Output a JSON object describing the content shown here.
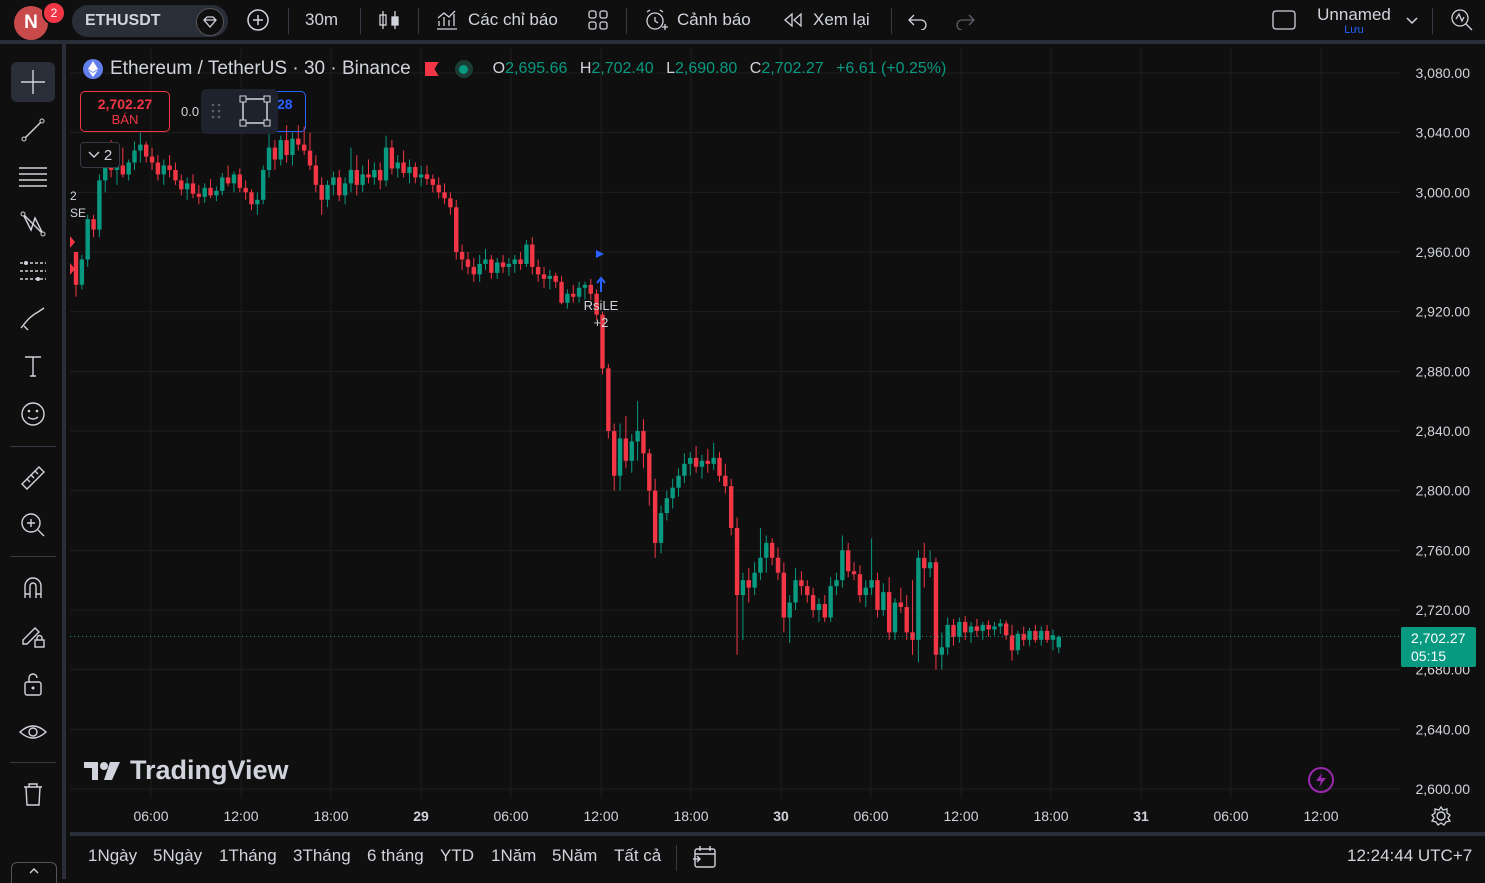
{
  "topbar": {
    "avatar_letter": "N",
    "notification_count": "2",
    "symbol": "ETHUSDT",
    "interval": "30m",
    "indicators_label": "Các chỉ báo",
    "alerts_label": "Cảnh báo",
    "replay_label": "Xem lại",
    "layout_name": "Unnamed",
    "save_label": "Lưu"
  },
  "legend": {
    "title": "Ethereum / TetherUS · 30 · Binance",
    "o_label": "O",
    "o": "2,695.66",
    "h_label": "H",
    "h": "2,702.40",
    "l_label": "L",
    "l": "2,690.80",
    "c_label": "C",
    "c": "2,702.27",
    "change": "+6.61 (+0.25%)"
  },
  "trade": {
    "sell_price": "2,702.27",
    "sell_label": "BÁN",
    "spread": "0.0",
    "buy_price_fragment": "28",
    "collapse_count": "2"
  },
  "signal": {
    "label": "RsiLE",
    "count": "+2"
  },
  "side_labels": [
    "2",
    "SE"
  ],
  "price_axis": {
    "labels": [
      "3,080.00",
      "3,040.00",
      "3,000.00",
      "2,960.00",
      "2,920.00",
      "2,880.00",
      "2,840.00",
      "2,800.00",
      "2,760.00",
      "2,720.00",
      "2,680.00",
      "2,640.00",
      "2,600.00"
    ],
    "last_price": "2,702.27",
    "countdown": "05:15"
  },
  "time_axis": {
    "labels": [
      {
        "t": "06:00",
        "bold": false
      },
      {
        "t": "12:00",
        "bold": false
      },
      {
        "t": "18:00",
        "bold": false
      },
      {
        "t": "29",
        "bold": true
      },
      {
        "t": "06:00",
        "bold": false
      },
      {
        "t": "12:00",
        "bold": false
      },
      {
        "t": "18:00",
        "bold": false
      },
      {
        "t": "30",
        "bold": true
      },
      {
        "t": "06:00",
        "bold": false
      },
      {
        "t": "12:00",
        "bold": false
      },
      {
        "t": "18:00",
        "bold": false
      },
      {
        "t": "31",
        "bold": true
      },
      {
        "t": "06:00",
        "bold": false
      },
      {
        "t": "12:00",
        "bold": false
      }
    ]
  },
  "brand": "TradingView",
  "bottombar": {
    "ranges": [
      "1Ngày",
      "5Ngày",
      "1Tháng",
      "3Tháng",
      "6 tháng",
      "YTD",
      "1Năm",
      "5Năm",
      "Tất cả"
    ],
    "clock": "12:24:44 UTC+7"
  },
  "colors": {
    "up": "#089981",
    "down": "#f23645",
    "bg": "#0f0f0f",
    "grid": "#1e1e1e"
  },
  "sidebar_tools": [
    "crosshair-icon",
    "trendline-icon",
    "fib-icon",
    "pattern-icon",
    "forecast-icon",
    "brush-icon",
    "text-icon",
    "emoji-icon",
    "ruler-icon",
    "zoom-icon",
    "magnet-icon",
    "lock-draw-icon",
    "lock-icon",
    "eye-icon",
    "trash-icon"
  ],
  "chart_data": {
    "type": "candlestick",
    "symbol": "ETHUSDT",
    "interval": "30",
    "ylim": [
      2600,
      3080
    ],
    "start": "2025-01-28 02:30",
    "candles": [
      [
        2960,
        2960,
        2930,
        2938
      ],
      [
        2938,
        2958,
        2935,
        2955
      ],
      [
        2955,
        2985,
        2950,
        2982
      ],
      [
        2982,
        2985,
        2970,
        2975
      ],
      [
        2975,
        3012,
        2970,
        3008
      ],
      [
        3008,
        3025,
        3000,
        3020
      ],
      [
        3020,
        3035,
        3010,
        3015
      ],
      [
        3015,
        3022,
        3005,
        3018
      ],
      [
        3018,
        3030,
        3010,
        3012
      ],
      [
        3012,
        3022,
        3008,
        3020
      ],
      [
        3020,
        3034,
        3015,
        3028
      ],
      [
        3028,
        3040,
        3020,
        3032
      ],
      [
        3032,
        3034,
        3020,
        3024
      ],
      [
        3024,
        3030,
        3015,
        3020
      ],
      [
        3020,
        3025,
        3008,
        3012
      ],
      [
        3012,
        3022,
        3005,
        3018
      ],
      [
        3018,
        3025,
        3010,
        3015
      ],
      [
        3015,
        3020,
        3005,
        3008
      ],
      [
        3008,
        3012,
        2998,
        3002
      ],
      [
        3002,
        3010,
        2995,
        3006
      ],
      [
        3006,
        3012,
        2996,
        2999
      ],
      [
        2999,
        3005,
        2992,
        2997
      ],
      [
        2997,
        3006,
        2993,
        3003
      ],
      [
        3003,
        3009,
        2996,
        2998
      ],
      [
        2998,
        3004,
        2994,
        3001
      ],
      [
        3001,
        3013,
        2998,
        3010
      ],
      [
        3010,
        3018,
        3004,
        3006
      ],
      [
        3006,
        3014,
        3000,
        3012
      ],
      [
        3012,
        3016,
        3000,
        3003
      ],
      [
        3003,
        3008,
        2995,
        3000
      ],
      [
        3000,
        3002,
        2988,
        2992
      ],
      [
        2992,
        3000,
        2985,
        2995
      ],
      [
        2995,
        3018,
        2992,
        3015
      ],
      [
        3015,
        3040,
        3010,
        3030
      ],
      [
        3030,
        3035,
        3015,
        3022
      ],
      [
        3022,
        3038,
        3018,
        3035
      ],
      [
        3035,
        3045,
        3020,
        3025
      ],
      [
        3025,
        3040,
        3018,
        3036
      ],
      [
        3036,
        3045,
        3028,
        3032
      ],
      [
        3032,
        3044,
        3025,
        3028
      ],
      [
        3028,
        3040,
        3015,
        3018
      ],
      [
        3018,
        3025,
        3000,
        3005
      ],
      [
        3005,
        3010,
        2985,
        2995
      ],
      [
        2995,
        3008,
        2990,
        3005
      ],
      [
        3005,
        3014,
        2998,
        3010
      ],
      [
        3010,
        3015,
        2994,
        2998
      ],
      [
        2998,
        3010,
        2992,
        3006
      ],
      [
        3006,
        3030,
        3000,
        3015
      ],
      [
        3015,
        3025,
        2998,
        3005
      ],
      [
        3005,
        3018,
        3000,
        3012
      ],
      [
        3012,
        3022,
        3006,
        3010
      ],
      [
        3010,
        3020,
        3005,
        3015
      ],
      [
        3015,
        3020,
        3002,
        3008
      ],
      [
        3008,
        3038,
        3004,
        3030
      ],
      [
        3030,
        3035,
        3012,
        3016
      ],
      [
        3016,
        3025,
        3010,
        3020
      ],
      [
        3020,
        3028,
        3010,
        3013
      ],
      [
        3013,
        3022,
        3006,
        3017
      ],
      [
        3017,
        3020,
        3006,
        3010
      ],
      [
        3010,
        3018,
        3004,
        3012
      ],
      [
        3012,
        3018,
        3005,
        3009
      ],
      [
        3009,
        3012,
        3000,
        3005
      ],
      [
        3005,
        3010,
        2996,
        3000
      ],
      [
        3000,
        3006,
        2992,
        2996
      ],
      [
        2996,
        3000,
        2985,
        2990
      ],
      [
        2990,
        2995,
        2955,
        2960
      ],
      [
        2960,
        2965,
        2948,
        2955
      ],
      [
        2955,
        2960,
        2945,
        2950
      ],
      [
        2950,
        2956,
        2940,
        2945
      ],
      [
        2945,
        2958,
        2940,
        2952
      ],
      [
        2952,
        2962,
        2948,
        2955
      ],
      [
        2955,
        2958,
        2942,
        2946
      ],
      [
        2946,
        2956,
        2942,
        2953
      ],
      [
        2953,
        2958,
        2946,
        2950
      ],
      [
        2950,
        2956,
        2944,
        2952
      ],
      [
        2952,
        2958,
        2946,
        2955
      ],
      [
        2955,
        2960,
        2948,
        2952
      ],
      [
        2952,
        2968,
        2950,
        2965
      ],
      [
        2965,
        2970,
        2945,
        2950
      ],
      [
        2950,
        2955,
        2940,
        2945
      ],
      [
        2945,
        2950,
        2936,
        2942
      ],
      [
        2942,
        2948,
        2935,
        2944
      ],
      [
        2944,
        2946,
        2936,
        2940
      ],
      [
        2940,
        2944,
        2925,
        2926
      ],
      [
        2926,
        2935,
        2922,
        2932
      ],
      [
        2932,
        2938,
        2926,
        2930
      ],
      [
        2930,
        2940,
        2926,
        2936
      ],
      [
        2936,
        2940,
        2928,
        2938
      ],
      [
        2938,
        2942,
        2928,
        2932
      ],
      [
        2932,
        2935,
        2914,
        2918
      ],
      [
        2918,
        2920,
        2878,
        2882
      ],
      [
        2882,
        2885,
        2835,
        2840
      ],
      [
        2840,
        2845,
        2800,
        2810
      ],
      [
        2810,
        2845,
        2800,
        2835
      ],
      [
        2835,
        2850,
        2815,
        2820
      ],
      [
        2820,
        2838,
        2812,
        2833
      ],
      [
        2833,
        2860,
        2820,
        2840
      ],
      [
        2840,
        2848,
        2815,
        2825
      ],
      [
        2825,
        2828,
        2790,
        2800
      ],
      [
        2800,
        2808,
        2755,
        2765
      ],
      [
        2765,
        2790,
        2758,
        2785
      ],
      [
        2785,
        2800,
        2780,
        2795
      ],
      [
        2795,
        2808,
        2788,
        2802
      ],
      [
        2802,
        2815,
        2796,
        2810
      ],
      [
        2810,
        2825,
        2805,
        2818
      ],
      [
        2818,
        2826,
        2810,
        2822
      ],
      [
        2822,
        2830,
        2812,
        2816
      ],
      [
        2816,
        2824,
        2808,
        2820
      ],
      [
        2820,
        2828,
        2812,
        2818
      ],
      [
        2818,
        2832,
        2814,
        2822
      ],
      [
        2822,
        2826,
        2806,
        2810
      ],
      [
        2810,
        2818,
        2798,
        2803
      ],
      [
        2803,
        2808,
        2770,
        2775
      ],
      [
        2775,
        2782,
        2690,
        2730
      ],
      [
        2730,
        2745,
        2700,
        2740
      ],
      [
        2740,
        2748,
        2725,
        2735
      ],
      [
        2735,
        2752,
        2730,
        2745
      ],
      [
        2745,
        2775,
        2740,
        2755
      ],
      [
        2755,
        2770,
        2745,
        2765
      ],
      [
        2765,
        2768,
        2750,
        2755
      ],
      [
        2755,
        2762,
        2740,
        2745
      ],
      [
        2745,
        2752,
        2705,
        2715
      ],
      [
        2715,
        2730,
        2698,
        2725
      ],
      [
        2725,
        2748,
        2720,
        2740
      ],
      [
        2740,
        2746,
        2730,
        2736
      ],
      [
        2736,
        2740,
        2725,
        2730
      ],
      [
        2730,
        2735,
        2715,
        2720
      ],
      [
        2720,
        2728,
        2712,
        2724
      ],
      [
        2724,
        2730,
        2712,
        2715
      ],
      [
        2715,
        2742,
        2712,
        2736
      ],
      [
        2736,
        2745,
        2730,
        2740
      ],
      [
        2740,
        2770,
        2735,
        2760
      ],
      [
        2760,
        2765,
        2742,
        2746
      ],
      [
        2746,
        2752,
        2740,
        2744
      ],
      [
        2744,
        2750,
        2725,
        2730
      ],
      [
        2730,
        2740,
        2722,
        2735
      ],
      [
        2735,
        2768,
        2730,
        2740
      ],
      [
        2740,
        2745,
        2715,
        2720
      ],
      [
        2720,
        2738,
        2716,
        2732
      ],
      [
        2732,
        2742,
        2700,
        2705
      ],
      [
        2705,
        2728,
        2700,
        2725
      ],
      [
        2725,
        2735,
        2718,
        2722
      ],
      [
        2722,
        2730,
        2700,
        2705
      ],
      [
        2705,
        2740,
        2690,
        2700
      ],
      [
        2700,
        2760,
        2685,
        2755
      ],
      [
        2755,
        2765,
        2735,
        2748
      ],
      [
        2748,
        2760,
        2742,
        2752
      ],
      [
        2752,
        2755,
        2680,
        2690
      ],
      [
        2690,
        2705,
        2680,
        2695
      ],
      [
        2695,
        2715,
        2690,
        2710
      ],
      [
        2710,
        2714,
        2696,
        2702
      ],
      [
        2702,
        2715,
        2698,
        2712
      ],
      [
        2712,
        2716,
        2700,
        2705
      ],
      [
        2705,
        2712,
        2698,
        2709
      ],
      [
        2709,
        2714,
        2702,
        2706
      ],
      [
        2706,
        2712,
        2700,
        2710
      ],
      [
        2710,
        2713,
        2702,
        2707
      ],
      [
        2707,
        2712,
        2703,
        2709
      ],
      [
        2709,
        2714,
        2704,
        2711
      ],
      [
        2711,
        2713,
        2700,
        2703
      ],
      [
        2703,
        2710,
        2686,
        2693
      ],
      [
        2693,
        2706,
        2690,
        2704
      ],
      [
        2704,
        2709,
        2696,
        2700
      ],
      [
        2700,
        2708,
        2696,
        2706
      ],
      [
        2706,
        2710,
        2698,
        2700
      ],
      [
        2700,
        2709,
        2696,
        2706
      ],
      [
        2706,
        2710,
        2698,
        2700
      ],
      [
        2700,
        2707,
        2693,
        2703
      ],
      [
        2695,
        2703,
        2691,
        2702
      ]
    ]
  }
}
